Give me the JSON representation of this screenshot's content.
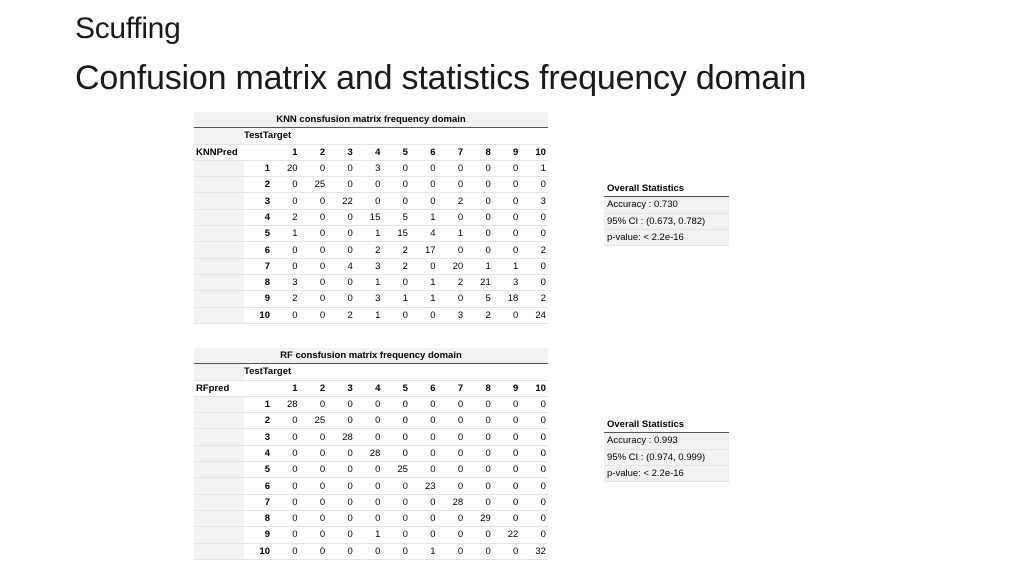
{
  "slide": {
    "title": "Scuffing",
    "subtitle": "Confusion matrix and statistics frequency domain"
  },
  "knn": {
    "caption": "KNN consfusion matrix frequency domain",
    "target_label": "TestTarget",
    "pred_label": "KNNPred",
    "columns": [
      "1",
      "2",
      "3",
      "4",
      "5",
      "6",
      "7",
      "8",
      "9",
      "10"
    ],
    "rows": [
      {
        "label": "1",
        "values": [
          20,
          0,
          0,
          3,
          0,
          0,
          0,
          0,
          0,
          1
        ]
      },
      {
        "label": "2",
        "values": [
          0,
          25,
          0,
          0,
          0,
          0,
          0,
          0,
          0,
          0
        ]
      },
      {
        "label": "3",
        "values": [
          0,
          0,
          22,
          0,
          0,
          0,
          2,
          0,
          0,
          3
        ]
      },
      {
        "label": "4",
        "values": [
          2,
          0,
          0,
          15,
          5,
          1,
          0,
          0,
          0,
          0
        ]
      },
      {
        "label": "5",
        "values": [
          1,
          0,
          0,
          1,
          15,
          4,
          1,
          0,
          0,
          0
        ]
      },
      {
        "label": "6",
        "values": [
          0,
          0,
          0,
          2,
          2,
          17,
          0,
          0,
          0,
          2
        ]
      },
      {
        "label": "7",
        "values": [
          0,
          0,
          4,
          3,
          2,
          0,
          20,
          1,
          1,
          0
        ]
      },
      {
        "label": "8",
        "values": [
          3,
          0,
          0,
          1,
          0,
          1,
          2,
          21,
          3,
          0
        ]
      },
      {
        "label": "9",
        "values": [
          2,
          0,
          0,
          3,
          1,
          1,
          0,
          5,
          18,
          2
        ]
      },
      {
        "label": "10",
        "values": [
          0,
          0,
          2,
          1,
          0,
          0,
          3,
          2,
          0,
          24
        ]
      }
    ],
    "stats": {
      "heading": "Overall Statistics",
      "accuracy": "Accuracy : 0.730",
      "ci": "95% CI : (0.673, 0.782)",
      "pvalue": "p-value: < 2.2e-16"
    }
  },
  "rf": {
    "caption": "RF consfusion matrix frequency domain",
    "target_label": "TestTarget",
    "pred_label": "RFpred",
    "columns": [
      "1",
      "2",
      "3",
      "4",
      "5",
      "6",
      "7",
      "8",
      "9",
      "10"
    ],
    "rows": [
      {
        "label": "1",
        "values": [
          28,
          0,
          0,
          0,
          0,
          0,
          0,
          0,
          0,
          0
        ]
      },
      {
        "label": "2",
        "values": [
          0,
          25,
          0,
          0,
          0,
          0,
          0,
          0,
          0,
          0
        ]
      },
      {
        "label": "3",
        "values": [
          0,
          0,
          28,
          0,
          0,
          0,
          0,
          0,
          0,
          0
        ]
      },
      {
        "label": "4",
        "values": [
          0,
          0,
          0,
          28,
          0,
          0,
          0,
          0,
          0,
          0
        ]
      },
      {
        "label": "5",
        "values": [
          0,
          0,
          0,
          0,
          25,
          0,
          0,
          0,
          0,
          0
        ]
      },
      {
        "label": "6",
        "values": [
          0,
          0,
          0,
          0,
          0,
          23,
          0,
          0,
          0,
          0
        ]
      },
      {
        "label": "7",
        "values": [
          0,
          0,
          0,
          0,
          0,
          0,
          28,
          0,
          0,
          0
        ]
      },
      {
        "label": "8",
        "values": [
          0,
          0,
          0,
          0,
          0,
          0,
          0,
          29,
          0,
          0
        ]
      },
      {
        "label": "9",
        "values": [
          0,
          0,
          0,
          1,
          0,
          0,
          0,
          0,
          22,
          0
        ]
      },
      {
        "label": "10",
        "values": [
          0,
          0,
          0,
          0,
          0,
          1,
          0,
          0,
          0,
          32
        ]
      }
    ],
    "stats": {
      "heading": "Overall Statistics",
      "accuracy": "Accuracy : 0.993",
      "ci": "95% CI : (0.974, 0.999)",
      "pvalue": "p-value: < 2.2e-16"
    }
  }
}
